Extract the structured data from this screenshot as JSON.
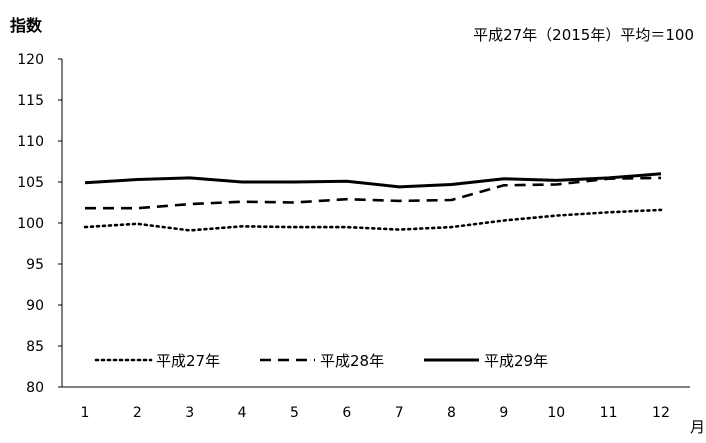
{
  "chart_data": {
    "type": "line",
    "ylabel": "指数",
    "xlabel": "月",
    "note": "平成27年（2015年）平均＝100",
    "x": [
      "1",
      "2",
      "3",
      "4",
      "5",
      "6",
      "7",
      "8",
      "9",
      "10",
      "11",
      "12"
    ],
    "ylim": [
      80,
      120
    ],
    "yticks": [
      "80",
      "85",
      "90",
      "95",
      "100",
      "105",
      "110",
      "115",
      "120"
    ],
    "grid": false,
    "legend_position": "bottom-left",
    "series": [
      {
        "name": "平成27年",
        "style": "dotted",
        "color": "#000000",
        "values": [
          99.5,
          99.9,
          99.1,
          99.6,
          99.5,
          99.5,
          99.2,
          99.5,
          100.3,
          100.9,
          101.3,
          101.6
        ]
      },
      {
        "name": "平成28年",
        "style": "dashed",
        "color": "#000000",
        "values": [
          101.8,
          101.8,
          102.3,
          102.6,
          102.5,
          102.9,
          102.7,
          102.8,
          104.6,
          104.7,
          105.4,
          105.5
        ]
      },
      {
        "name": "平成29年",
        "style": "solid",
        "color": "#000000",
        "values": [
          104.9,
          105.3,
          105.5,
          105.0,
          105.0,
          105.1,
          104.4,
          104.7,
          105.4,
          105.2,
          105.5,
          106.0
        ]
      }
    ]
  }
}
